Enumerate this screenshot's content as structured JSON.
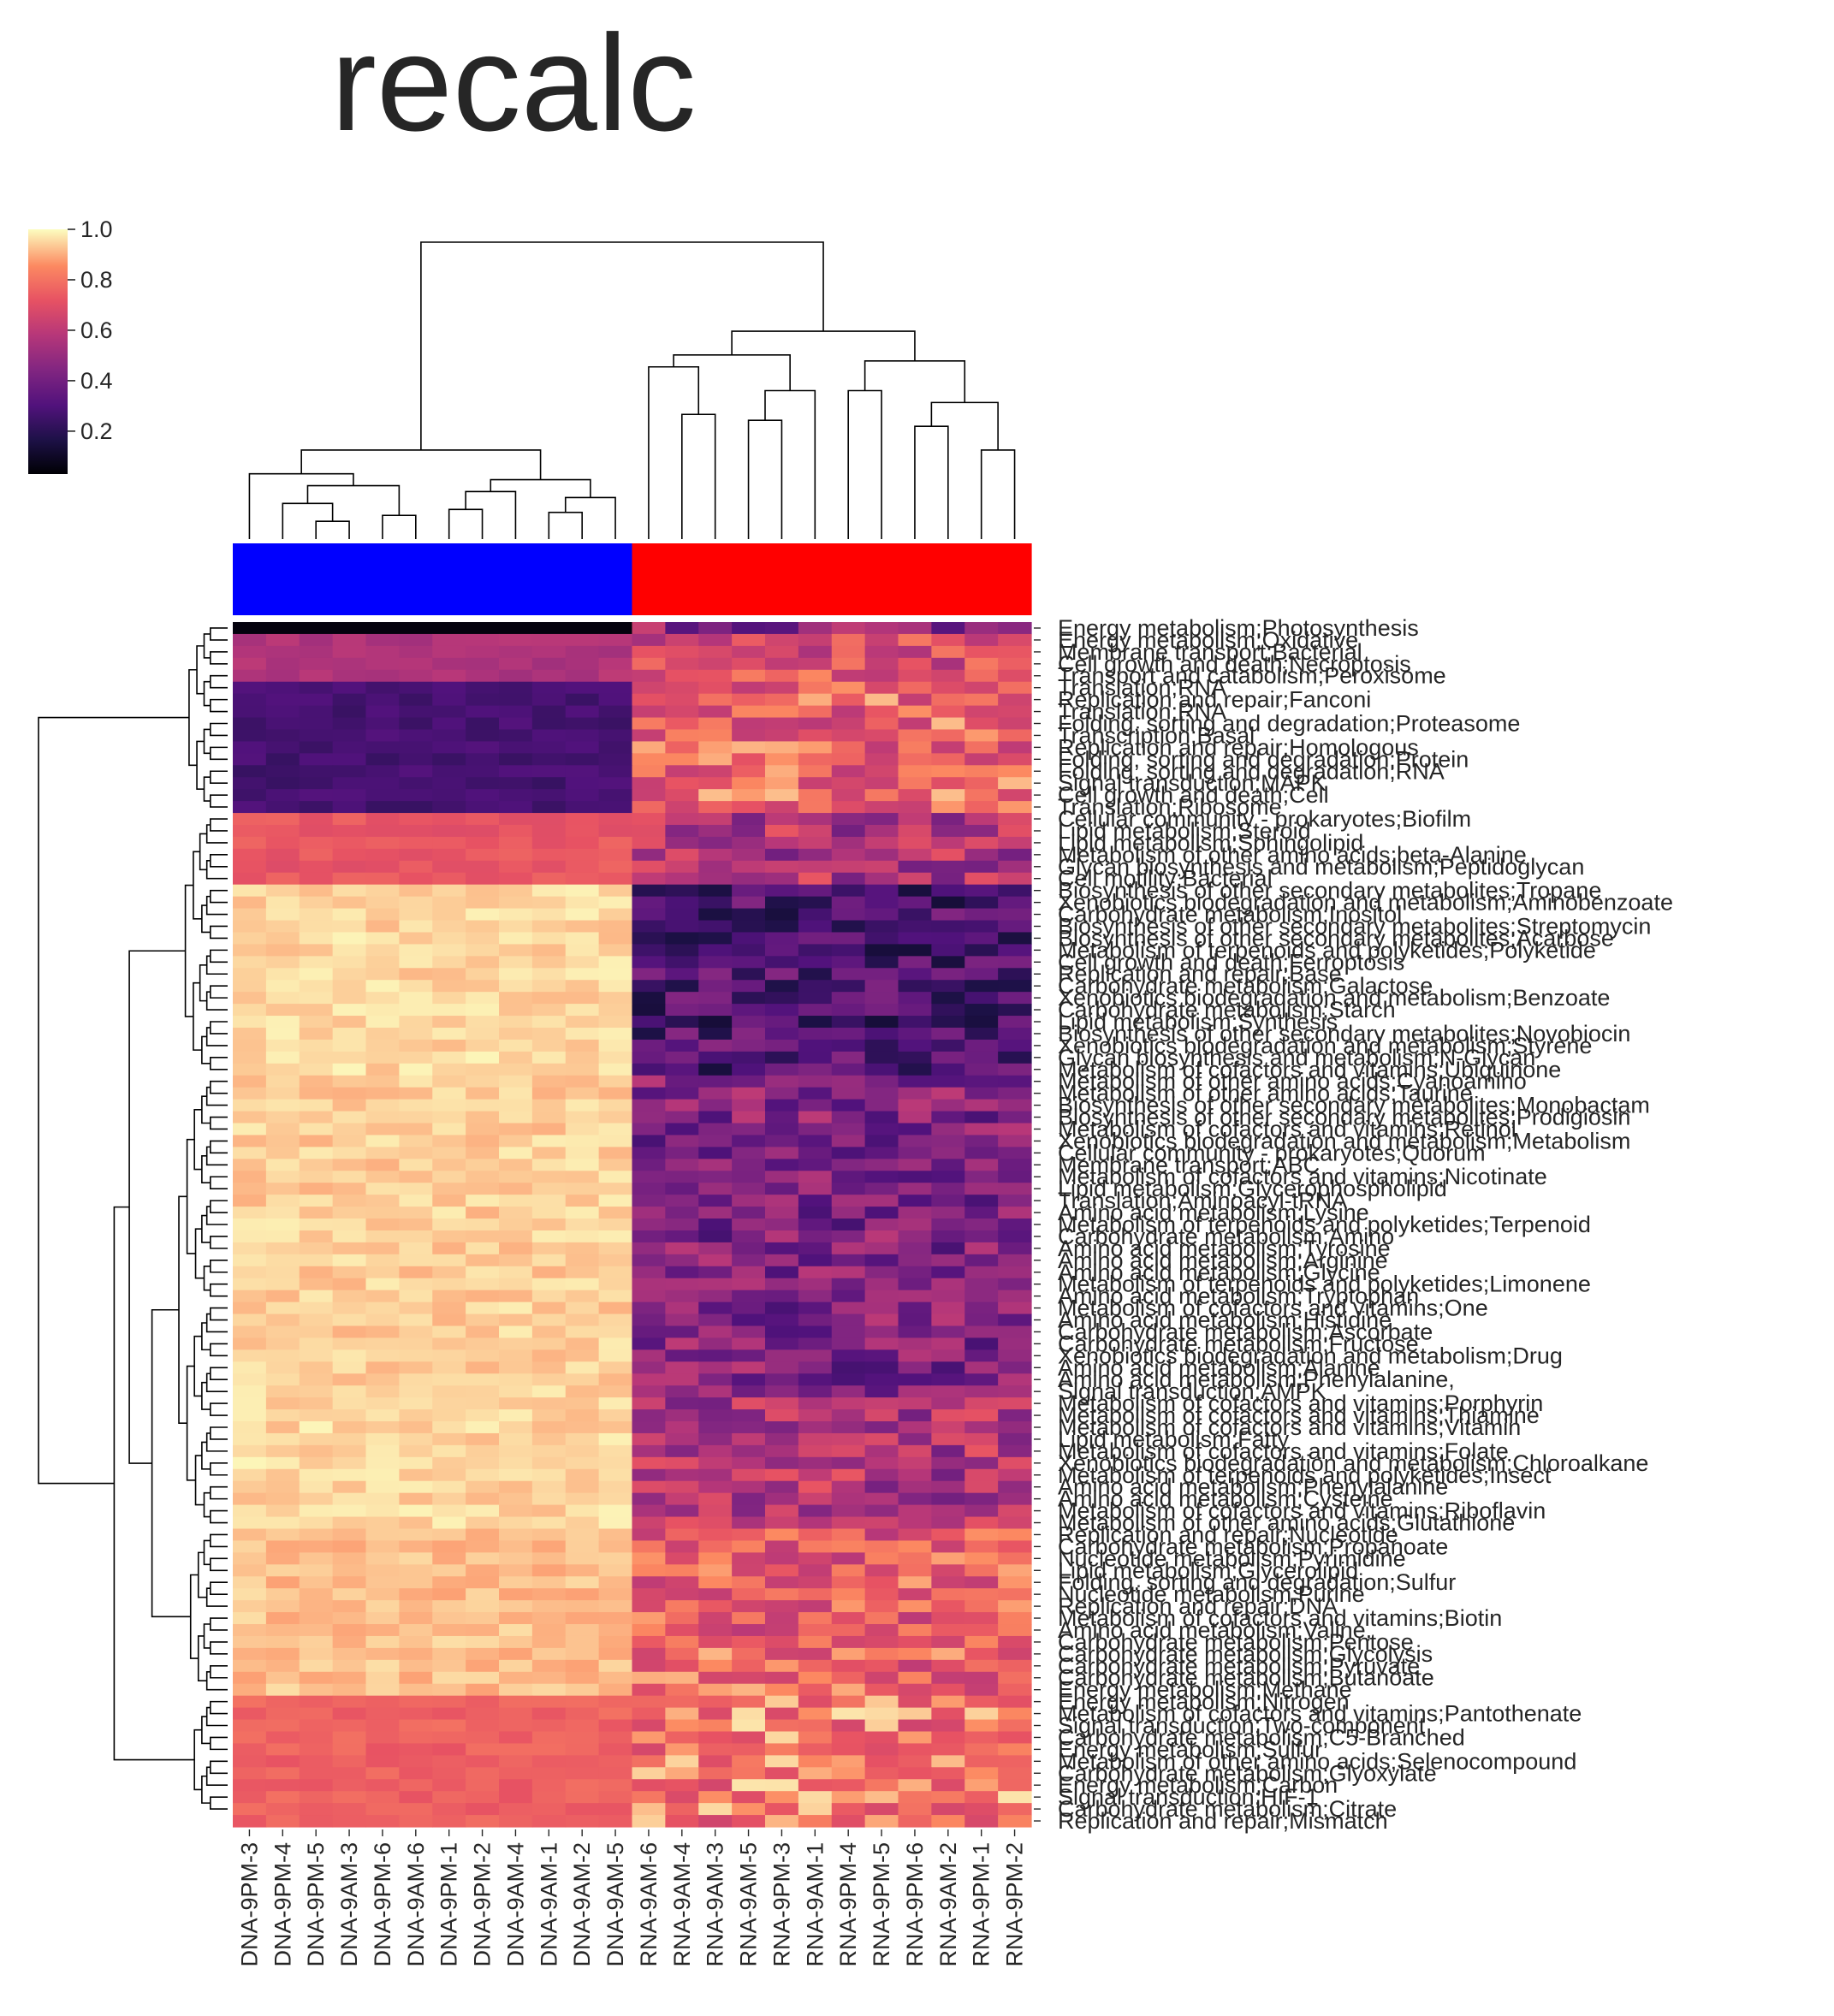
{
  "chart_data": {
    "type": "heatmap",
    "title": "recalc",
    "colormap": "magma",
    "colorbar": {
      "ticks": [
        "0.2",
        "0.4",
        "0.6",
        "0.8",
        "1.0"
      ]
    },
    "columns": [
      "DNA-9PM-3",
      "DNA-9PM-4",
      "DNA-9PM-5",
      "DNA-9AM-3",
      "DNA-9PM-6",
      "DNA-9AM-6",
      "DNA-9PM-1",
      "DNA-9PM-2",
      "DNA-9AM-4",
      "DNA-9AM-1",
      "DNA-9AM-2",
      "DNA-9AM-5",
      "RNA-9AM-6",
      "RNA-9AM-4",
      "RNA-9AM-3",
      "RNA-9AM-5",
      "RNA-9PM-3",
      "RNA-9AM-1",
      "RNA-9PM-4",
      "RNA-9PM-5",
      "RNA-9PM-6",
      "RNA-9AM-2",
      "RNA-9PM-1",
      "RNA-9PM-2"
    ],
    "column_groups": {
      "DNA": "#0000ff",
      "RNA": "#ff0000"
    },
    "row_labels": [
      "Energy metabolism;Photosynthesis",
      "Energy metabolism;Oxidative",
      "Membrane transport;Bacterial",
      "Cell growth and death;Necroptosis",
      "Transport and catabolism;Peroxisome",
      "Translation;RNA",
      "Replication and repair;Fanconi",
      "Translation;RNA",
      "Folding, sorting and degradation;Proteasome",
      "Transcription;Basal",
      "Replication and repair;Homologous",
      "Folding, sorting and degradation;Protein",
      "Folding, sorting and degradation;RNA",
      "Signal transduction;MAPK",
      "Cell growth and death;Cell",
      "Translation;Ribosome",
      "Cellular community - prokaryotes;Biofilm",
      "Lipid metabolism;Steroid",
      "Lipid metabolism;Sphingolipid",
      "Metabolism of other amino acids;beta-Alanine",
      "Glycan biosynthesis and metabolism;Peptidoglycan",
      "Cell motility;Bacterial",
      "Biosynthesis of other secondary metabolites;Tropane",
      "Xenobiotics biodegradation and metabolism;Aminobenzoate",
      "Carbohydrate metabolism;Inositol",
      "Biosynthesis of other secondary metabolites;Streptomycin",
      "Biosynthesis of other secondary metabolites;Acarbose",
      "Metabolism of terpenoids and polyketides;Polyketide",
      "Cell growth and death;Ferroptosis",
      "Replication and repair;Base",
      "Carbohydrate metabolism;Galactose",
      "Xenobiotics biodegradation and metabolism;Benzoate",
      "Carbohydrate metabolism;Starch",
      "Lipid metabolism;Synthesis",
      "Biosynthesis of other secondary metabolites;Novobiocin",
      "Xenobiotics biodegradation and metabolism;Styrene",
      "Glycan biosynthesis and metabolism;N-Glycan",
      "Metabolism of cofactors and vitamins;Ubiquinone",
      "Metabolism of other amino acids;Cyanoamino",
      "Metabolism of other amino acids;Taurine",
      "Biosynthesis of other secondary metabolites;Monobactam",
      "Biosynthesis of other secondary metabolites;Prodigiosin",
      "Metabolism of cofactors and vitamins;Retinol",
      "Xenobiotics biodegradation and metabolism;Metabolism",
      "Cellular community - prokaryotes;Quorum",
      "Membrane transport;ABC",
      "Metabolism of cofactors and vitamins;Nicotinate",
      "Lipid metabolism;Glycerophospholipid",
      "Translation;Aminoacyl-tRNA",
      "Amino acid metabolism;Lysine",
      "Metabolism of terpenoids and polyketides;Terpenoid",
      "Carbohydrate metabolism;Amino",
      "Amino acid metabolism;Tyrosine",
      "Amino acid metabolism;Arginine",
      "Amino acid metabolism;Glycine",
      "Metabolism of terpenoids and polyketides;Limonene",
      "Amino acid metabolism;Tryptophan",
      "Metabolism of cofactors and vitamins;One",
      "Amino acid metabolism;Histidine",
      "Carbohydrate metabolism;Ascorbate",
      "Carbohydrate metabolism;Fructose",
      "Xenobiotics biodegradation and metabolism;Drug",
      "Amino acid metabolism;Alanine",
      "Amino acid metabolism;Phenylalanine,",
      "Signal transduction;AMPK",
      "Metabolism of cofactors and vitamins;Porphyrin",
      "Metabolism of cofactors and vitamins;Thiamine",
      "Metabolism of cofactors and vitamins;Vitamin",
      "Lipid metabolism;Fatty",
      "Metabolism of cofactors and vitamins;Folate",
      "Xenobiotics biodegradation and metabolism;Chloroalkane",
      "Metabolism of terpenoids and polyketides;Insect",
      "Amino acid metabolism;Phenylalanine",
      "Amino acid metabolism;Cysteine",
      "Metabolism of cofactors and vitamins;Riboflavin",
      "Metabolism of other amino acids;Glutathione",
      "Replication and repair;Nucleotide",
      "Carbohydrate metabolism;Propanoate",
      "Nucleotide metabolism;Pyrimidine",
      "Lipid metabolism;Glycerolipid",
      "Folding, sorting and degradation;Sulfur",
      "Nucleotide metabolism;Purine",
      "Replication and repair;DNA",
      "Metabolism of cofactors and vitamins;Biotin",
      "Amino acid metabolism;Valine,",
      "Carbohydrate metabolism;Pentose",
      "Carbohydrate metabolism;Glycolysis",
      "Carbohydrate metabolism;Pyruvate",
      "Carbohydrate metabolism;Butanoate",
      "Energy metabolism;Methane",
      "Energy metabolism;Nitrogen",
      "Metabolism of cofactors and vitamins;Pantothenate",
      "Signal transduction;Two-component",
      "Carbohydrate metabolism;C5-Branched",
      "Energy metabolism;Sulfur",
      "Metabolism of other amino acids;Selenocompound",
      "Carbohydrate metabolism;Glyoxylate",
      "Energy metabolism;Carbon",
      "Signal transduction;HIF-1",
      "Carbohydrate metabolism;Citrate",
      "Replication and repair;Mismatch"
    ]
  }
}
